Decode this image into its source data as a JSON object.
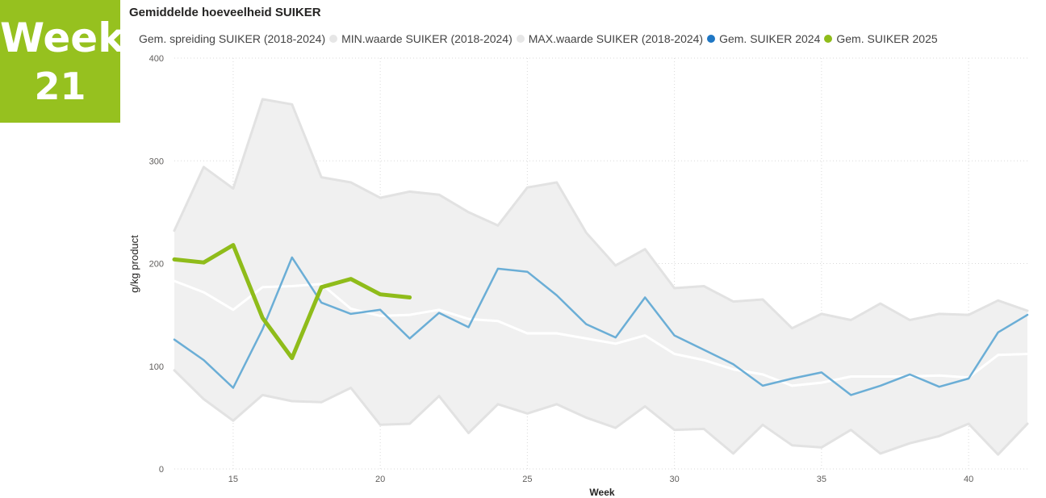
{
  "badge": {
    "line1": "Week",
    "line2": "21"
  },
  "chart_data": {
    "type": "line",
    "title": "Gemiddelde hoeveelheid SUIKER",
    "xlabel": "Week",
    "ylabel": "g/kg product",
    "xlim": [
      13,
      42
    ],
    "ylim": [
      0,
      400
    ],
    "x_ticks": [
      15,
      20,
      25,
      30,
      35,
      40
    ],
    "y_ticks": [
      0,
      100,
      200,
      300,
      400
    ],
    "grid": true,
    "legend_position": "top-left",
    "legend": [
      {
        "name": "Gem. spreiding SUIKER (2018-2024)",
        "color": "#ffffff"
      },
      {
        "name": "MIN.waarde SUIKER (2018-2024)",
        "color": "#e6e6e6"
      },
      {
        "name": "MAX.waarde SUIKER (2018-2024)",
        "color": "#e6e6e6"
      },
      {
        "name": "Gem. SUIKER 2024",
        "color": "#1f77c4"
      },
      {
        "name": "Gem. SUIKER 2025",
        "color": "#8fbc1a"
      }
    ],
    "series": [
      {
        "name": "MAX.waarde SUIKER (2018-2024)",
        "color": "#e6e6e6",
        "x": [
          13,
          14,
          15,
          16,
          17,
          18,
          19,
          20,
          21,
          22,
          23,
          24,
          25,
          26,
          27,
          28,
          29,
          30,
          31,
          32,
          33,
          34,
          35,
          36,
          37,
          38,
          39,
          40,
          41,
          42
        ],
        "values": [
          232,
          294,
          273,
          360,
          355,
          284,
          279,
          264,
          270,
          267,
          250,
          237,
          274,
          279,
          230,
          198,
          214,
          176,
          178,
          163,
          165,
          137,
          151,
          145,
          161,
          145,
          151,
          150,
          164,
          154
        ]
      },
      {
        "name": "MIN.waarde SUIKER (2018-2024)",
        "color": "#e6e6e6",
        "x": [
          13,
          14,
          15,
          16,
          17,
          18,
          19,
          20,
          21,
          22,
          23,
          24,
          25,
          26,
          27,
          28,
          29,
          30,
          31,
          32,
          33,
          34,
          35,
          36,
          37,
          38,
          39,
          40,
          41,
          42
        ],
        "values": [
          96,
          68,
          47,
          72,
          66,
          65,
          79,
          43,
          44,
          71,
          35,
          63,
          54,
          63,
          50,
          40,
          61,
          38,
          39,
          15,
          43,
          23,
          21,
          38,
          15,
          25,
          32,
          44,
          14,
          44
        ]
      },
      {
        "name": "Gem. spreiding SUIKER (2018-2024)",
        "color": "#ffffff",
        "x": [
          13,
          14,
          15,
          16,
          17,
          18,
          19,
          20,
          21,
          22,
          23,
          24,
          25,
          26,
          27,
          28,
          29,
          30,
          31,
          32,
          33,
          34,
          35,
          36,
          37,
          38,
          39,
          40,
          41,
          42
        ],
        "values": [
          183,
          172,
          155,
          177,
          178,
          180,
          156,
          149,
          150,
          155,
          146,
          144,
          132,
          132,
          127,
          122,
          130,
          112,
          106,
          97,
          92,
          81,
          84,
          90,
          90,
          90,
          91,
          89,
          111,
          112
        ]
      },
      {
        "name": "Gem. SUIKER 2024",
        "color": "#6baed6",
        "x": [
          13,
          14,
          15,
          16,
          17,
          18,
          19,
          20,
          21,
          22,
          23,
          24,
          25,
          26,
          27,
          28,
          29,
          30,
          31,
          32,
          33,
          34,
          35,
          36,
          37,
          38,
          39,
          40,
          41,
          42
        ],
        "values": [
          126,
          106,
          79,
          136,
          206,
          162,
          151,
          155,
          127,
          152,
          138,
          195,
          192,
          169,
          141,
          128,
          167,
          130,
          116,
          102,
          81,
          88,
          94,
          72,
          81,
          92,
          80,
          88,
          133,
          150
        ]
      },
      {
        "name": "Gem. SUIKER 2025",
        "color": "#8fbc1a",
        "x": [
          13,
          14,
          15,
          16,
          17,
          18,
          19,
          20,
          21
        ],
        "values": [
          204,
          201,
          218,
          147,
          108,
          177,
          185,
          170,
          167
        ]
      }
    ]
  }
}
